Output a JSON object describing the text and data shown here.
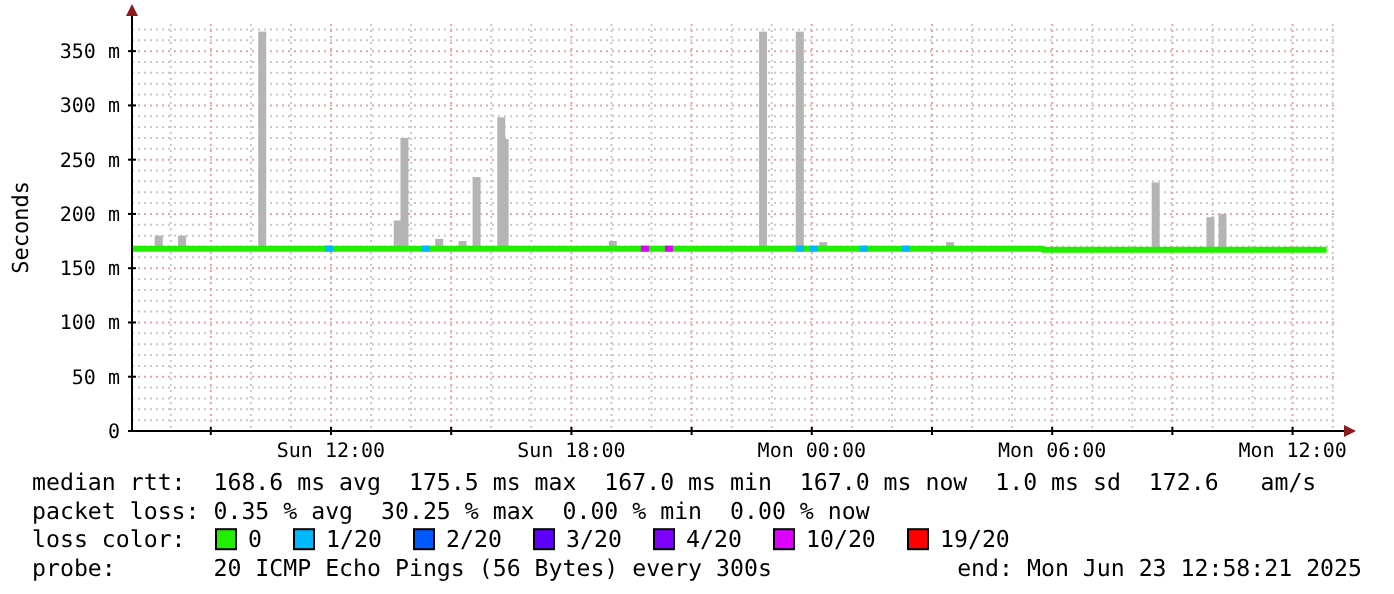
{
  "chart_data": {
    "type": "line",
    "ylabel": "Seconds",
    "legend_title": "loss color:",
    "legend": "bottom",
    "grid": true,
    "xlim": [
      "2025-06-22T07:02",
      "2025-06-23T13:05"
    ],
    "ylim": [
      0,
      375
    ],
    "xticks": [
      {
        "value": "2025-06-22T09:00",
        "label": null
      },
      {
        "value": "2025-06-22T12:00",
        "label": "Sun 12:00"
      },
      {
        "value": "2025-06-22T15:00",
        "label": null
      },
      {
        "value": "2025-06-22T18:00",
        "label": "Sun 18:00"
      },
      {
        "value": "2025-06-22T21:00",
        "label": null
      },
      {
        "value": "2025-06-23T00:00",
        "label": "Mon 00:00"
      },
      {
        "value": "2025-06-23T03:00",
        "label": null
      },
      {
        "value": "2025-06-23T06:00",
        "label": "Mon 06:00"
      },
      {
        "value": "2025-06-23T09:00",
        "label": null
      },
      {
        "value": "2025-06-23T12:00",
        "label": "Mon 12:00"
      }
    ],
    "yticks": [
      0,
      {
        "value": 50,
        "label": "50 m"
      },
      {
        "value": 100,
        "label": "100 m"
      },
      {
        "value": 150,
        "label": "150 m"
      },
      {
        "value": 200,
        "label": "200 m"
      },
      {
        "value": 250,
        "label": "250 m"
      },
      {
        "value": 300,
        "label": "300 m"
      },
      {
        "value": 350,
        "label": "350 m"
      }
    ],
    "series": [
      {
        "type": "bar",
        "color": "#b4b4b4",
        "x": [
          "2025-06-22T07:42",
          "2025-06-22T08:17",
          "2025-06-22T10:17",
          "2025-06-22T13:40",
          "2025-06-22T13:50",
          "2025-06-22T14:42",
          "2025-06-22T15:17",
          "2025-06-22T15:38",
          "2025-06-22T16:15",
          "2025-06-22T16:20",
          "2025-06-22T19:02",
          "2025-06-22T22:47",
          "2025-06-22T23:42",
          "2025-06-23T00:17",
          "2025-06-23T03:27",
          "2025-06-23T08:35",
          "2025-06-23T09:57",
          "2025-06-23T10:15"
        ],
        "base": [
          168,
          168,
          168,
          168,
          168,
          168,
          168,
          168,
          168,
          168,
          168,
          168,
          168,
          168,
          168,
          167,
          167,
          167
        ],
        "values": [
          12,
          12,
          200,
          26,
          102,
          9,
          7,
          66,
          121,
          101,
          7,
          200,
          200,
          6,
          6,
          62,
          30,
          33
        ]
      },
      {
        "name": "0",
        "color": "#22ee00",
        "x": [
          "2025-06-22T07:02",
          "2025-06-23T05:45",
          "2025-06-23T05:46",
          "2025-06-23T12:51"
        ],
        "values": [
          168,
          168,
          167,
          167
        ]
      },
      {
        "name": "1/20",
        "type": "scatter",
        "marker": "square",
        "color": "#00b8ff",
        "x": [
          "2025-06-22T11:57",
          "2025-06-22T14:22",
          "2025-06-22T23:42",
          "2025-06-23T00:03",
          "2025-06-23T01:18",
          "2025-06-23T02:21"
        ],
        "values": [
          168,
          168,
          168,
          168,
          168,
          168
        ]
      },
      {
        "name": "2/20",
        "type": "scatter",
        "marker": "square",
        "color": "#0059ff"
      },
      {
        "name": "3/20",
        "type": "scatter",
        "marker": "square",
        "color": "#5e00ff"
      },
      {
        "name": "4/20",
        "type": "scatter",
        "marker": "square",
        "color": "#7e00ff"
      },
      {
        "name": "10/20",
        "type": "scatter",
        "marker": "square",
        "color": "#dd00ff",
        "x": [
          "2025-06-22T19:50",
          "2025-06-22T20:26"
        ],
        "values": [
          168,
          168
        ]
      },
      {
        "name": "19/20",
        "type": "scatter",
        "marker": "square",
        "color": "#ff0000"
      }
    ],
    "annotations": [
      "median rtt:  168.6 ms avg  175.5 ms max  167.0 ms min  167.0 ms now  1.0 ms sd  172.6   am/s",
      "packet loss: 0.35 % avg  30.25 % max  0.00 % min  0.00 % now",
      "probe:       20 ICMP Echo Pings (56 Bytes) every 300s",
      "end: Mon Jun 23 12:58:21 2025"
    ]
  }
}
